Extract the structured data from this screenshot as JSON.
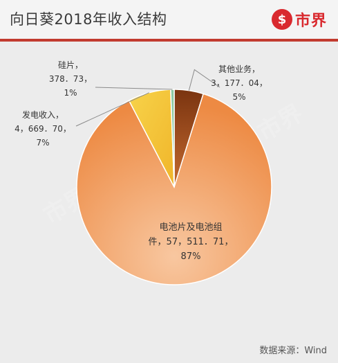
{
  "header": {
    "title": "向日葵2018年收入结构"
  },
  "brand": {
    "glyph": "$",
    "name": "市界",
    "color": "#d9292e"
  },
  "footer": {
    "source": "数据来源：Wind"
  },
  "chart_data": {
    "type": "pie",
    "title": "向日葵2018年收入结构",
    "slices": [
      {
        "name": "其他业务",
        "value": 3177.04,
        "value_label": "3，177．04",
        "percent": "5%",
        "color": "#b55a22"
      },
      {
        "name": "电池片及电池组件",
        "value": 57511.71,
        "value_label": "57，511．71",
        "percent": "87%",
        "color": "#f0a061"
      },
      {
        "name": "发电收入",
        "value": 4669.7,
        "value_label": "4，669．70",
        "percent": "7%",
        "color": "#f5c433"
      },
      {
        "name": "硅片",
        "value": 378.73,
        "value_label": "378．73",
        "percent": "1%",
        "color": "#8dc9a2"
      }
    ],
    "labels": {
      "other": {
        "line1": "其他业务，",
        "line2": "3，177．04，",
        "line3": "5%"
      },
      "cells": {
        "line1": "电池片及电池组",
        "line2": "件，57，511．71，",
        "line3": "87%"
      },
      "power": {
        "line1": "发电收入，",
        "line2": "4，669．70，",
        "line3": "7%"
      },
      "wafer": {
        "line1": "硅片，",
        "line2": "378．73，",
        "line3": "1%"
      }
    }
  }
}
